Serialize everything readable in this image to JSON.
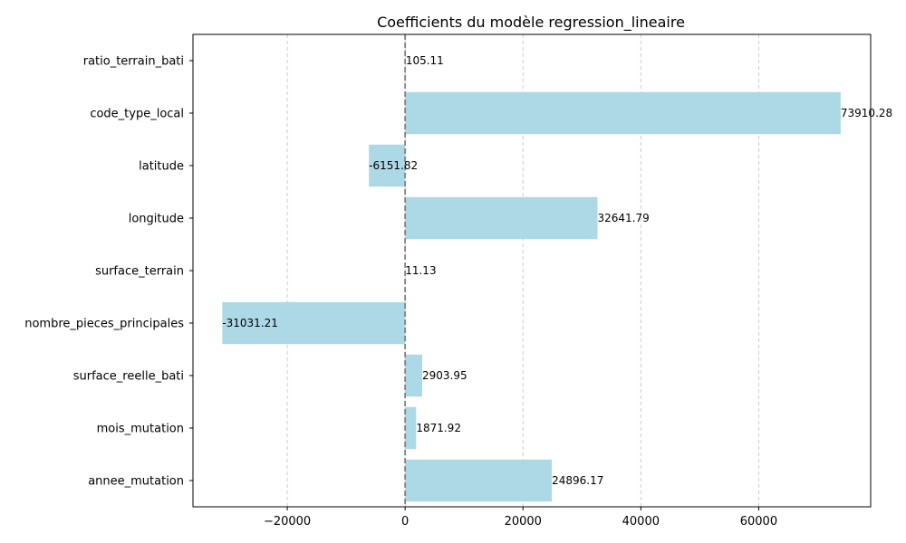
{
  "chart_data": {
    "type": "bar",
    "orientation": "horizontal",
    "title": "Coefficients du modèle regression_lineaire",
    "xlabel": "",
    "ylabel": "",
    "categories": [
      "ratio_terrain_bati",
      "code_type_local",
      "latitude",
      "longitude",
      "surface_terrain",
      "nombre_pieces_principales",
      "surface_reelle_bati",
      "mois_mutation",
      "annee_mutation"
    ],
    "values": [
      105.11,
      73910.28,
      -6151.82,
      32641.79,
      11.13,
      -31031.21,
      2903.95,
      1871.92,
      24896.17
    ],
    "value_labels": [
      "105.11",
      "73910.28",
      "-6151.82",
      "32641.79",
      "11.13",
      "-31031.21",
      "2903.95",
      "1871.92",
      "24896.17"
    ],
    "xlim": [
      -36000,
      79000
    ],
    "xticks": [
      -20000,
      0,
      20000,
      40000,
      60000
    ],
    "xtick_labels": [
      "−20000",
      "0",
      "20000",
      "40000",
      "60000"
    ],
    "grid": "x",
    "zero_line": true,
    "colors": {
      "bar": "#add8e6",
      "grid": "#c0c0c0",
      "zero_line": "#808080",
      "axis": "#000000"
    }
  }
}
